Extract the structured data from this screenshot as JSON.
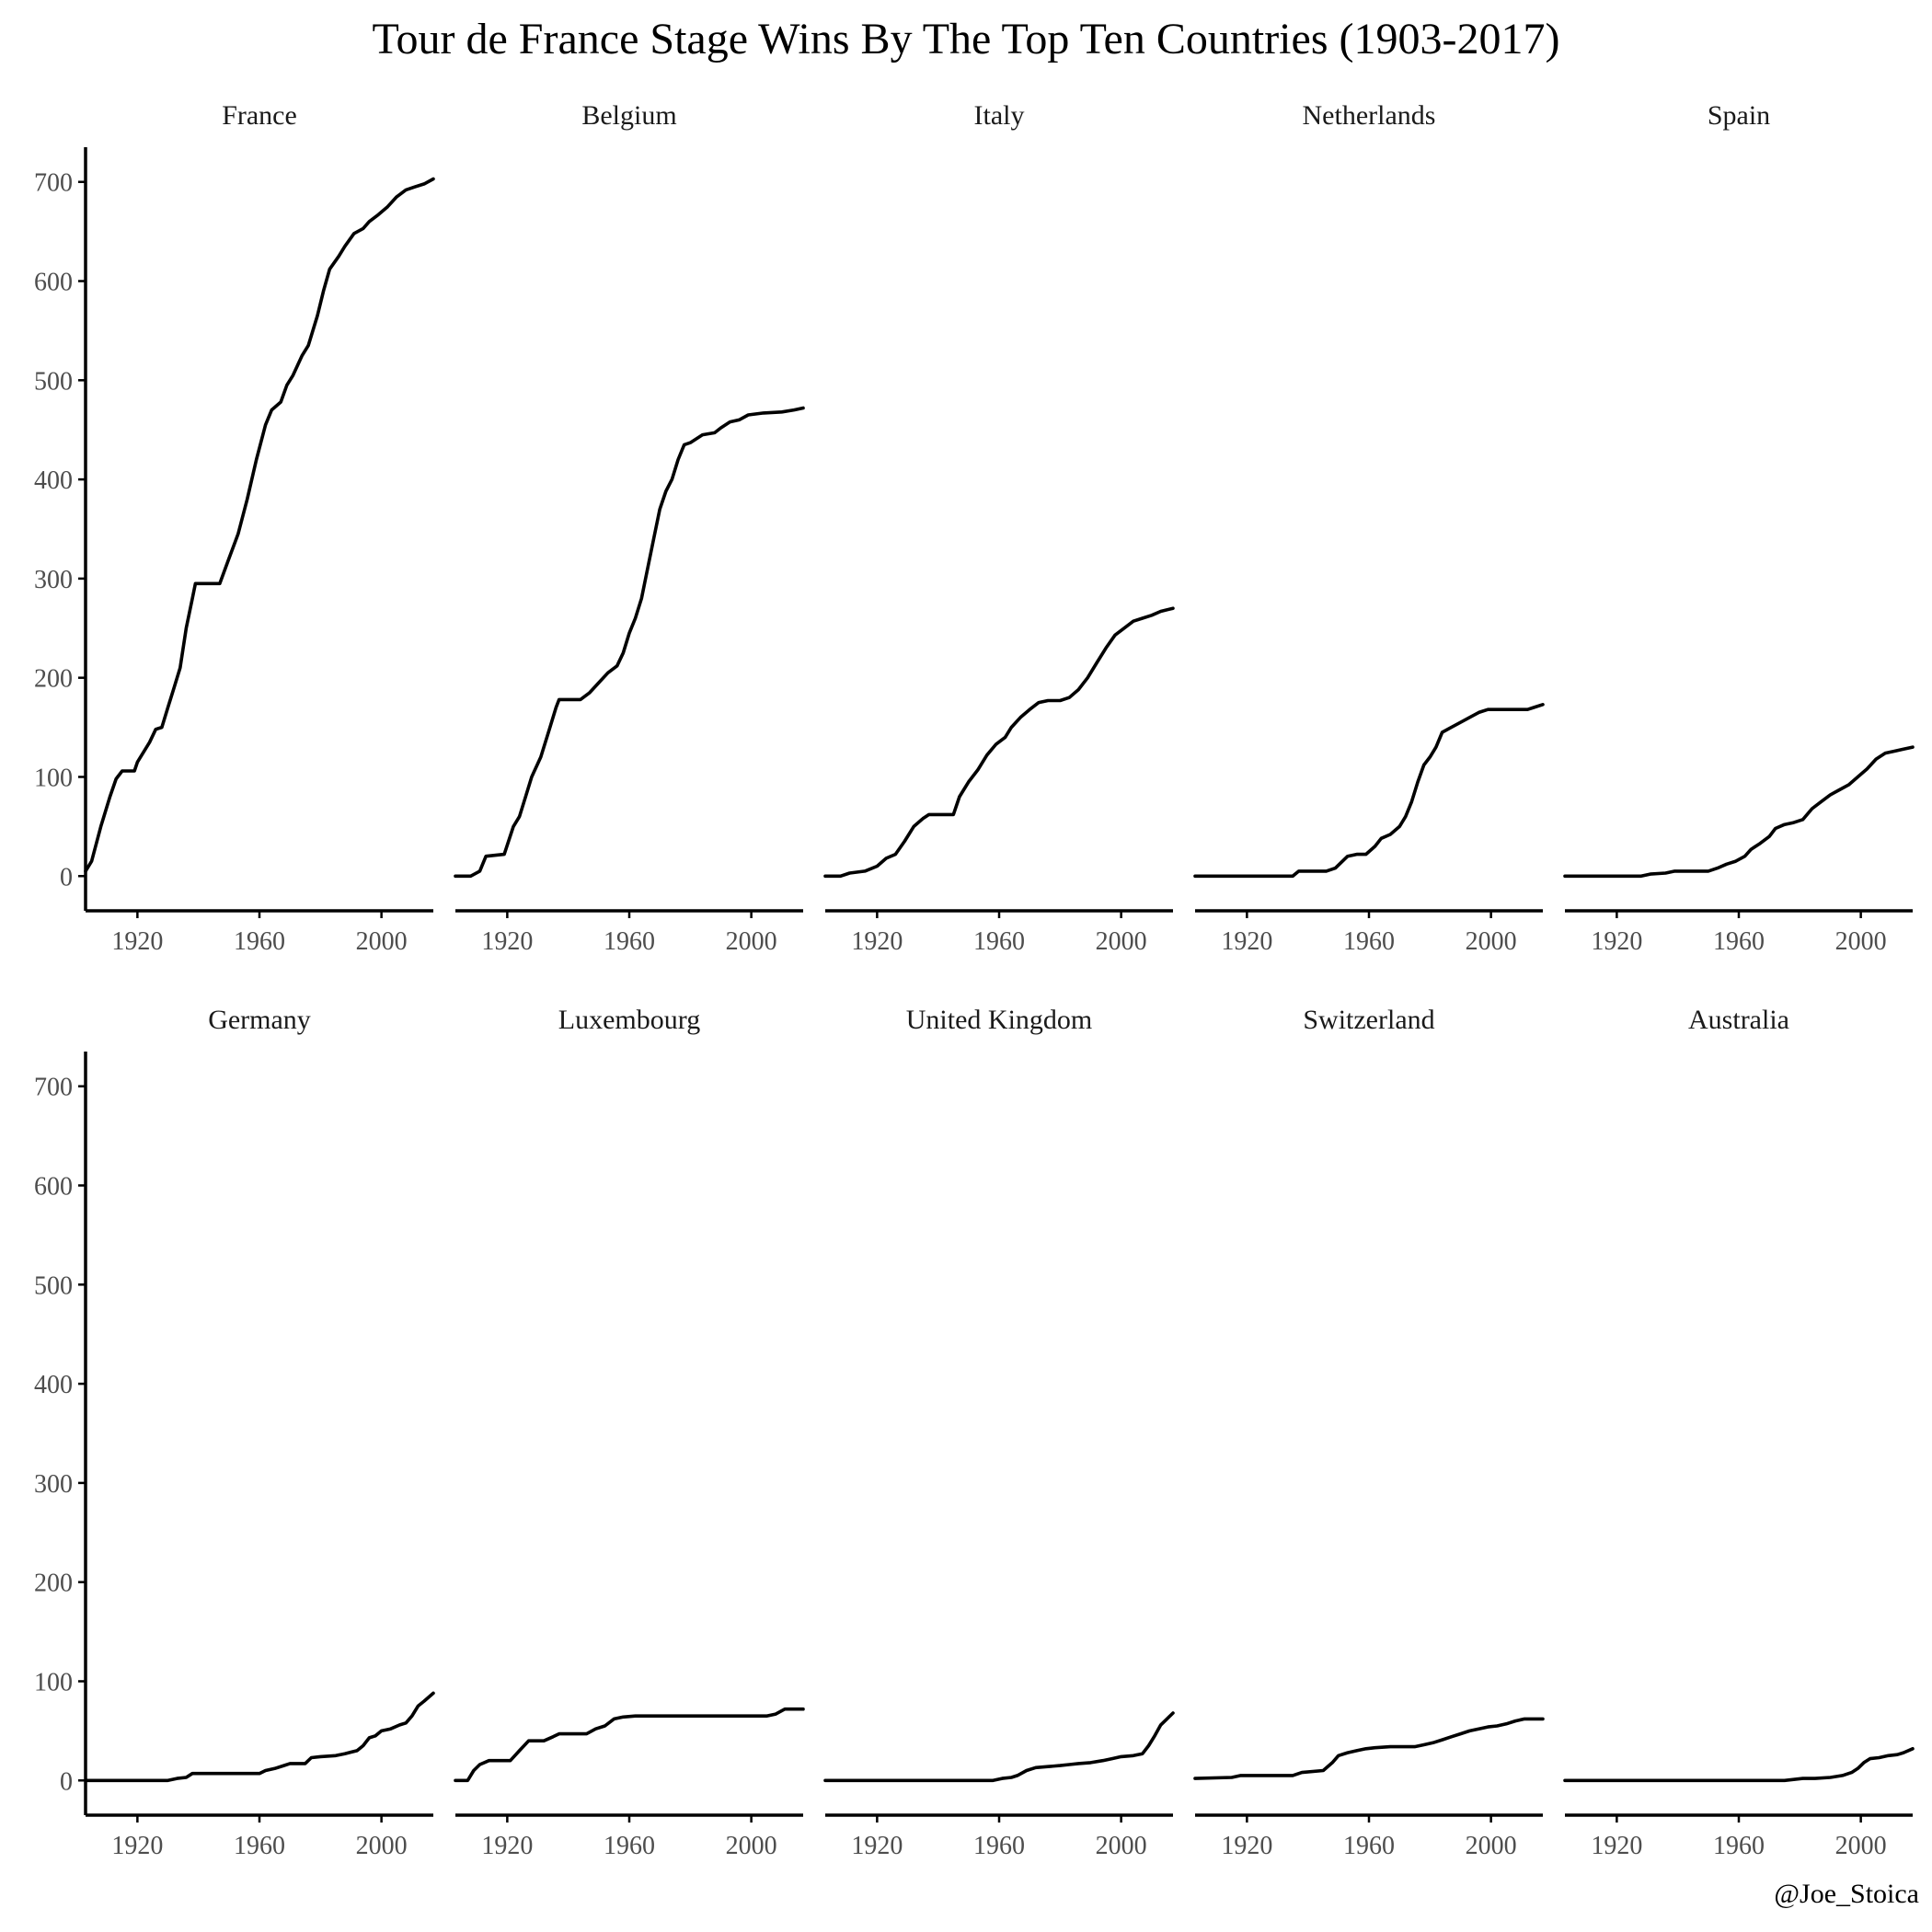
{
  "title": "Tour de France Stage Wins By The Top Ten Countries (1903-2017)",
  "credit": "@Joe_Stoica",
  "chart_data": {
    "type": "line",
    "title": "Tour de France Stage Wins By The Top Ten Countries (1903-2017)",
    "xlabel": "",
    "ylabel": "",
    "xlim": [
      1903,
      2017
    ],
    "ylim": [
      -35,
      735
    ],
    "x_ticks": [
      1920,
      1960,
      2000
    ],
    "y_ticks": [
      0,
      100,
      200,
      300,
      400,
      500,
      600,
      700
    ],
    "grid": false,
    "legend": "none",
    "facets": [
      {
        "name": "France",
        "points": [
          [
            1903,
            5
          ],
          [
            1905,
            15
          ],
          [
            1908,
            50
          ],
          [
            1911,
            80
          ],
          [
            1913,
            98
          ],
          [
            1915,
            106
          ],
          [
            1919,
            106
          ],
          [
            1920,
            115
          ],
          [
            1924,
            135
          ],
          [
            1926,
            148
          ],
          [
            1928,
            150
          ],
          [
            1930,
            170
          ],
          [
            1932,
            190
          ],
          [
            1934,
            210
          ],
          [
            1936,
            250
          ],
          [
            1938,
            280
          ],
          [
            1939,
            295
          ],
          [
            1947,
            295
          ],
          [
            1950,
            320
          ],
          [
            1953,
            345
          ],
          [
            1956,
            380
          ],
          [
            1959,
            420
          ],
          [
            1962,
            455
          ],
          [
            1964,
            470
          ],
          [
            1967,
            478
          ],
          [
            1969,
            495
          ],
          [
            1971,
            505
          ],
          [
            1974,
            525
          ],
          [
            1976,
            535
          ],
          [
            1979,
            565
          ],
          [
            1981,
            590
          ],
          [
            1983,
            612
          ],
          [
            1986,
            625
          ],
          [
            1988,
            635
          ],
          [
            1991,
            648
          ],
          [
            1994,
            653
          ],
          [
            1996,
            660
          ],
          [
            1999,
            667
          ],
          [
            2002,
            675
          ],
          [
            2005,
            685
          ],
          [
            2008,
            692
          ],
          [
            2011,
            695
          ],
          [
            2014,
            698
          ],
          [
            2017,
            703
          ]
        ]
      },
      {
        "name": "Belgium",
        "points": [
          [
            1903,
            0
          ],
          [
            1908,
            0
          ],
          [
            1911,
            5
          ],
          [
            1913,
            20
          ],
          [
            1919,
            22
          ],
          [
            1922,
            50
          ],
          [
            1924,
            60
          ],
          [
            1926,
            80
          ],
          [
            1928,
            100
          ],
          [
            1931,
            120
          ],
          [
            1934,
            150
          ],
          [
            1936,
            170
          ],
          [
            1937,
            178
          ],
          [
            1944,
            178
          ],
          [
            1947,
            185
          ],
          [
            1950,
            195
          ],
          [
            1953,
            205
          ],
          [
            1956,
            212
          ],
          [
            1958,
            225
          ],
          [
            1960,
            245
          ],
          [
            1962,
            260
          ],
          [
            1964,
            280
          ],
          [
            1966,
            310
          ],
          [
            1968,
            340
          ],
          [
            1970,
            370
          ],
          [
            1972,
            388
          ],
          [
            1974,
            400
          ],
          [
            1976,
            420
          ],
          [
            1978,
            435
          ],
          [
            1980,
            437
          ],
          [
            1984,
            445
          ],
          [
            1988,
            447
          ],
          [
            1990,
            452
          ],
          [
            1993,
            458
          ],
          [
            1996,
            460
          ],
          [
            1999,
            465
          ],
          [
            2004,
            467
          ],
          [
            2010,
            468
          ],
          [
            2014,
            470
          ],
          [
            2017,
            472
          ]
        ]
      },
      {
        "name": "Italy",
        "points": [
          [
            1903,
            0
          ],
          [
            1908,
            0
          ],
          [
            1911,
            3
          ],
          [
            1916,
            5
          ],
          [
            1920,
            10
          ],
          [
            1923,
            18
          ],
          [
            1926,
            22
          ],
          [
            1929,
            35
          ],
          [
            1932,
            50
          ],
          [
            1935,
            58
          ],
          [
            1937,
            62
          ],
          [
            1945,
            62
          ],
          [
            1947,
            80
          ],
          [
            1950,
            95
          ],
          [
            1953,
            107
          ],
          [
            1956,
            122
          ],
          [
            1959,
            133
          ],
          [
            1962,
            140
          ],
          [
            1964,
            150
          ],
          [
            1967,
            160
          ],
          [
            1970,
            168
          ],
          [
            1973,
            175
          ],
          [
            1976,
            177
          ],
          [
            1980,
            177
          ],
          [
            1983,
            180
          ],
          [
            1986,
            188
          ],
          [
            1989,
            200
          ],
          [
            1992,
            215
          ],
          [
            1995,
            230
          ],
          [
            1998,
            243
          ],
          [
            2001,
            250
          ],
          [
            2004,
            257
          ],
          [
            2007,
            260
          ],
          [
            2010,
            263
          ],
          [
            2013,
            267
          ],
          [
            2017,
            270
          ]
        ]
      },
      {
        "name": "Netherlands",
        "points": [
          [
            1903,
            0
          ],
          [
            1935,
            0
          ],
          [
            1937,
            5
          ],
          [
            1946,
            5
          ],
          [
            1949,
            8
          ],
          [
            1953,
            20
          ],
          [
            1956,
            22
          ],
          [
            1959,
            22
          ],
          [
            1962,
            30
          ],
          [
            1964,
            38
          ],
          [
            1967,
            42
          ],
          [
            1970,
            50
          ],
          [
            1972,
            60
          ],
          [
            1974,
            75
          ],
          [
            1976,
            95
          ],
          [
            1978,
            112
          ],
          [
            1980,
            120
          ],
          [
            1982,
            130
          ],
          [
            1984,
            145
          ],
          [
            1987,
            150
          ],
          [
            1990,
            155
          ],
          [
            1993,
            160
          ],
          [
            1996,
            165
          ],
          [
            1999,
            168
          ],
          [
            2003,
            168
          ],
          [
            2008,
            168
          ],
          [
            2012,
            168
          ],
          [
            2014,
            170
          ],
          [
            2017,
            173
          ]
        ]
      },
      {
        "name": "Spain",
        "points": [
          [
            1903,
            0
          ],
          [
            1928,
            0
          ],
          [
            1931,
            2
          ],
          [
            1936,
            3
          ],
          [
            1939,
            5
          ],
          [
            1950,
            5
          ],
          [
            1953,
            8
          ],
          [
            1956,
            12
          ],
          [
            1959,
            15
          ],
          [
            1962,
            20
          ],
          [
            1964,
            27
          ],
          [
            1967,
            33
          ],
          [
            1970,
            40
          ],
          [
            1972,
            48
          ],
          [
            1975,
            52
          ],
          [
            1978,
            54
          ],
          [
            1981,
            57
          ],
          [
            1984,
            68
          ],
          [
            1987,
            75
          ],
          [
            1990,
            82
          ],
          [
            1993,
            87
          ],
          [
            1996,
            92
          ],
          [
            1999,
            100
          ],
          [
            2002,
            108
          ],
          [
            2005,
            118
          ],
          [
            2008,
            124
          ],
          [
            2011,
            126
          ],
          [
            2014,
            128
          ],
          [
            2017,
            130
          ]
        ]
      },
      {
        "name": "Germany",
        "points": [
          [
            1903,
            0
          ],
          [
            1930,
            0
          ],
          [
            1933,
            2
          ],
          [
            1936,
            3
          ],
          [
            1938,
            7
          ],
          [
            1960,
            7
          ],
          [
            1962,
            10
          ],
          [
            1965,
            12
          ],
          [
            1968,
            15
          ],
          [
            1970,
            17
          ],
          [
            1975,
            17
          ],
          [
            1977,
            23
          ],
          [
            1980,
            24
          ],
          [
            1985,
            25
          ],
          [
            1988,
            27
          ],
          [
            1992,
            30
          ],
          [
            1994,
            35
          ],
          [
            1996,
            43
          ],
          [
            1998,
            45
          ],
          [
            2000,
            50
          ],
          [
            2003,
            52
          ],
          [
            2006,
            56
          ],
          [
            2008,
            58
          ],
          [
            2010,
            65
          ],
          [
            2012,
            75
          ],
          [
            2014,
            80
          ],
          [
            2017,
            88
          ]
        ]
      },
      {
        "name": "Luxembourg",
        "points": [
          [
            1903,
            0
          ],
          [
            1907,
            0
          ],
          [
            1909,
            10
          ],
          [
            1911,
            16
          ],
          [
            1914,
            20
          ],
          [
            1921,
            20
          ],
          [
            1924,
            30
          ],
          [
            1927,
            40
          ],
          [
            1932,
            40
          ],
          [
            1935,
            44
          ],
          [
            1937,
            47
          ],
          [
            1946,
            47
          ],
          [
            1949,
            52
          ],
          [
            1952,
            55
          ],
          [
            1955,
            62
          ],
          [
            1958,
            64
          ],
          [
            1962,
            65
          ],
          [
            1970,
            65
          ],
          [
            1990,
            65
          ],
          [
            2005,
            65
          ],
          [
            2008,
            67
          ],
          [
            2011,
            72
          ],
          [
            2014,
            72
          ],
          [
            2017,
            72
          ]
        ]
      },
      {
        "name": "United Kingdom",
        "points": [
          [
            1903,
            0
          ],
          [
            1958,
            0
          ],
          [
            1961,
            2
          ],
          [
            1964,
            3
          ],
          [
            1966,
            5
          ],
          [
            1969,
            10
          ],
          [
            1972,
            13
          ],
          [
            1976,
            14
          ],
          [
            1980,
            15
          ],
          [
            1983,
            16
          ],
          [
            1986,
            17
          ],
          [
            1990,
            18
          ],
          [
            1994,
            20
          ],
          [
            1997,
            22
          ],
          [
            2000,
            24
          ],
          [
            2004,
            25
          ],
          [
            2007,
            27
          ],
          [
            2009,
            35
          ],
          [
            2011,
            45
          ],
          [
            2013,
            56
          ],
          [
            2015,
            62
          ],
          [
            2017,
            68
          ]
        ]
      },
      {
        "name": "Switzerland",
        "points": [
          [
            1903,
            2
          ],
          [
            1915,
            3
          ],
          [
            1918,
            5
          ],
          [
            1935,
            5
          ],
          [
            1938,
            8
          ],
          [
            1945,
            10
          ],
          [
            1948,
            18
          ],
          [
            1950,
            25
          ],
          [
            1953,
            28
          ],
          [
            1956,
            30
          ],
          [
            1959,
            32
          ],
          [
            1962,
            33
          ],
          [
            1967,
            34
          ],
          [
            1975,
            34
          ],
          [
            1978,
            36
          ],
          [
            1981,
            38
          ],
          [
            1984,
            41
          ],
          [
            1987,
            44
          ],
          [
            1990,
            47
          ],
          [
            1993,
            50
          ],
          [
            1996,
            52
          ],
          [
            1999,
            54
          ],
          [
            2002,
            55
          ],
          [
            2005,
            57
          ],
          [
            2008,
            60
          ],
          [
            2011,
            62
          ],
          [
            2017,
            62
          ]
        ]
      },
      {
        "name": "Australia",
        "points": [
          [
            1903,
            0
          ],
          [
            1975,
            0
          ],
          [
            1978,
            1
          ],
          [
            1981,
            2
          ],
          [
            1985,
            2
          ],
          [
            1990,
            3
          ],
          [
            1994,
            5
          ],
          [
            1997,
            8
          ],
          [
            1999,
            12
          ],
          [
            2001,
            18
          ],
          [
            2003,
            22
          ],
          [
            2006,
            23
          ],
          [
            2009,
            25
          ],
          [
            2012,
            26
          ],
          [
            2014,
            28
          ],
          [
            2017,
            32
          ]
        ]
      }
    ]
  }
}
